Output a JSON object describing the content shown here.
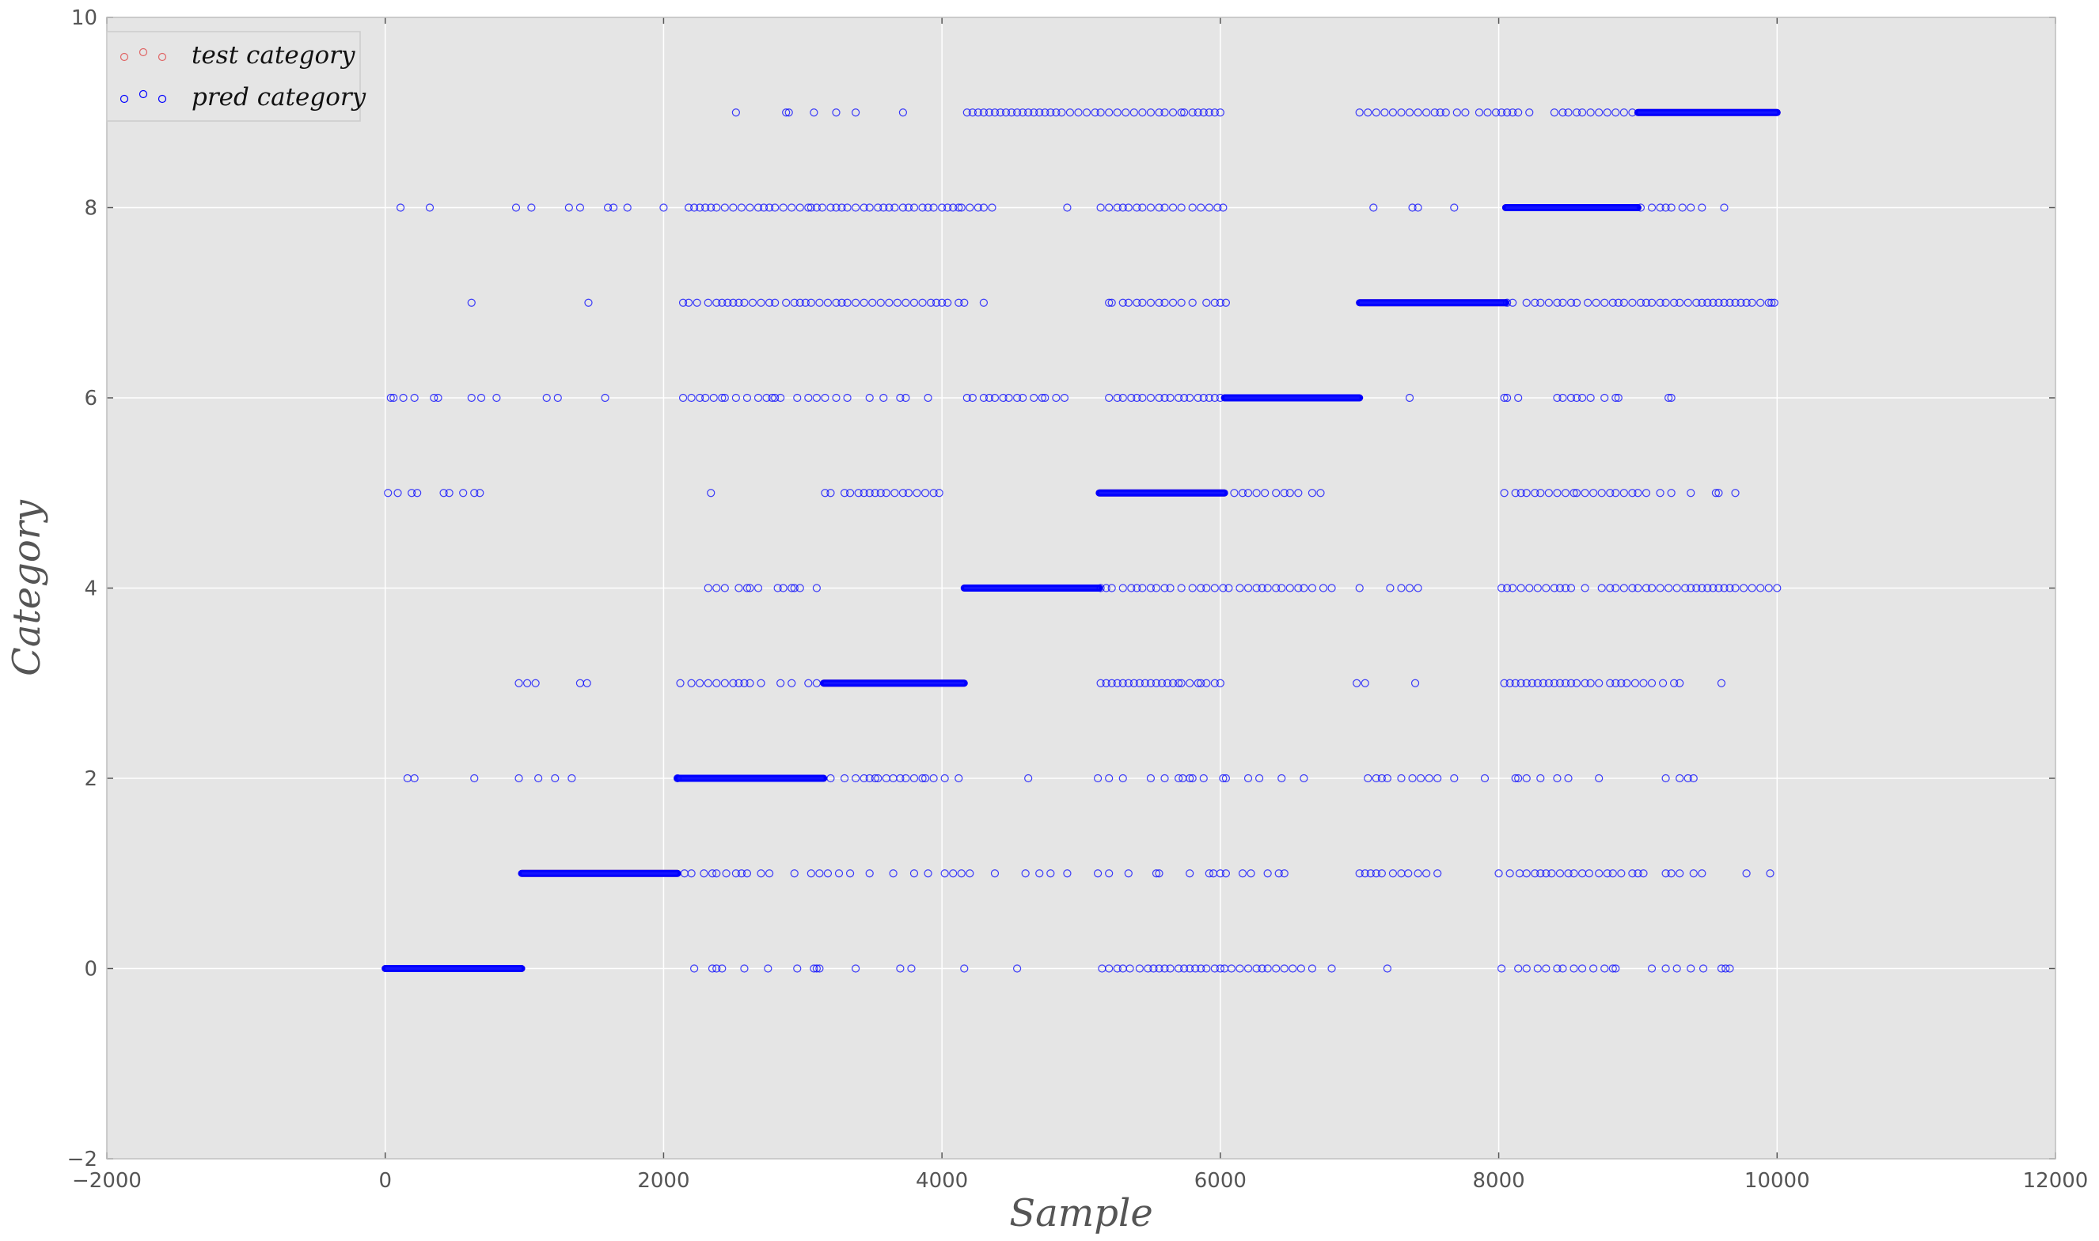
{
  "chart_data": {
    "type": "scatter",
    "title": "",
    "xlabel": "Sample",
    "ylabel": "Category",
    "xlim": [
      -2000,
      12000
    ],
    "ylim": [
      -2,
      10
    ],
    "xticks": [
      -2000,
      0,
      2000,
      4000,
      6000,
      8000,
      10000,
      12000
    ],
    "yticks": [
      -2,
      0,
      2,
      4,
      6,
      8,
      10
    ],
    "xtick_labels": [
      "−2000",
      "0",
      "2000",
      "4000",
      "6000",
      "8000",
      "10000",
      "12000"
    ],
    "ytick_labels": [
      "−2",
      "0",
      "2",
      "4",
      "6",
      "8",
      "10"
    ],
    "grid": true,
    "legend_position": "upper-left",
    "background_color": "#e5e5e5",
    "series": [
      {
        "name": "test category",
        "color": "#e06666",
        "marker": "open-circle",
        "segments": [
          {
            "y": 0,
            "x_start": 0,
            "x_end": 980
          },
          {
            "y": 1,
            "x_start": 980,
            "x_end": 2100
          },
          {
            "y": 2,
            "x_start": 2100,
            "x_end": 3150
          },
          {
            "y": 3,
            "x_start": 3150,
            "x_end": 4160
          },
          {
            "y": 4,
            "x_start": 4160,
            "x_end": 5130
          },
          {
            "y": 5,
            "x_start": 5130,
            "x_end": 6030
          },
          {
            "y": 6,
            "x_start": 6030,
            "x_end": 7000
          },
          {
            "y": 7,
            "x_start": 7000,
            "x_end": 8050
          },
          {
            "y": 8,
            "x_start": 8050,
            "x_end": 9000
          },
          {
            "y": 9,
            "x_start": 9000,
            "x_end": 10000
          }
        ]
      },
      {
        "name": "pred category",
        "color": "#0000ff",
        "marker": "open-circle",
        "segments": [
          {
            "y": 0,
            "x_start": 0,
            "x_end": 980
          },
          {
            "y": 1,
            "x_start": 980,
            "x_end": 2100
          },
          {
            "y": 2,
            "x_start": 2100,
            "x_end": 3150
          },
          {
            "y": 3,
            "x_start": 3150,
            "x_end": 4160
          },
          {
            "y": 4,
            "x_start": 4160,
            "x_end": 5130
          },
          {
            "y": 5,
            "x_start": 5130,
            "x_end": 6030
          },
          {
            "y": 6,
            "x_start": 6030,
            "x_end": 7000
          },
          {
            "y": 7,
            "x_start": 7000,
            "x_end": 8050
          },
          {
            "y": 8,
            "x_start": 8050,
            "x_end": 9000
          },
          {
            "y": 9,
            "x_start": 9000,
            "x_end": 10000
          }
        ],
        "scattered_points": {
          "0": [
            2220,
            2350,
            2380,
            2420,
            2580,
            2750,
            2960,
            3080,
            3100,
            3120,
            3380,
            3700,
            3780,
            4160,
            4540,
            5150,
            5200,
            5260,
            5300,
            5350,
            5420,
            5480,
            5520,
            5560,
            5600,
            5640,
            5700,
            5740,
            5780,
            5820,
            5860,
            5900,
            5960,
            6000,
            6030,
            6080,
            6140,
            6200,
            6260,
            6300,
            6340,
            6400,
            6460,
            6520,
            6580,
            6660,
            6800,
            7200,
            8020,
            8140,
            8200,
            8280,
            8340,
            8420,
            8460,
            8540,
            8600,
            8680,
            8760,
            8820,
            8840,
            9100,
            9200,
            9280,
            9380,
            9470,
            9600,
            9630,
            9660
          ],
          "1": [
            2150,
            2200,
            2290,
            2350,
            2380,
            2450,
            2520,
            2560,
            2600,
            2700,
            2760,
            2940,
            3060,
            3120,
            3180,
            3260,
            3340,
            3480,
            3650,
            3800,
            3900,
            4020,
            4080,
            4140,
            4200,
            4380,
            4600,
            4700,
            4780,
            4900,
            5120,
            5200,
            5340,
            5540,
            5560,
            5780,
            5920,
            5950,
            6000,
            6040,
            6160,
            6220,
            6340,
            6420,
            6460,
            7000,
            7040,
            7080,
            7120,
            7160,
            7240,
            7300,
            7350,
            7420,
            7480,
            7560,
            8000,
            8080,
            8150,
            8200,
            8260,
            8300,
            8340,
            8380,
            8440,
            8500,
            8540,
            8600,
            8650,
            8720,
            8780,
            8820,
            8880,
            8960,
            9000,
            9040,
            9200,
            9240,
            9300,
            9400,
            9460,
            9780,
            9950
          ],
          "2": [
            160,
            210,
            640,
            960,
            1100,
            1220,
            1340,
            2100,
            3200,
            3300,
            3380,
            3440,
            3480,
            3520,
            3540,
            3600,
            3650,
            3700,
            3740,
            3800,
            3860,
            3880,
            3940,
            4020,
            4120,
            4620,
            5120,
            5200,
            5300,
            5500,
            5600,
            5700,
            5730,
            5780,
            5800,
            5880,
            6020,
            6040,
            6200,
            6280,
            6440,
            6600,
            7060,
            7120,
            7160,
            7200,
            7300,
            7380,
            7440,
            7500,
            7560,
            7680,
            7900,
            8120,
            8140,
            8200,
            8300,
            8420,
            8500,
            8720,
            9200,
            9300,
            9360,
            9400
          ],
          "3": [
            960,
            1020,
            1080,
            1400,
            1450,
            2120,
            2200,
            2260,
            2320,
            2380,
            2440,
            2500,
            2540,
            2580,
            2620,
            2700,
            2840,
            2920,
            3040,
            3100,
            5140,
            5180,
            5220,
            5260,
            5300,
            5340,
            5380,
            5420,
            5460,
            5500,
            5540,
            5580,
            5620,
            5660,
            5700,
            5720,
            5780,
            5840,
            5860,
            5900,
            5960,
            6000,
            6980,
            7040,
            7400,
            8040,
            8080,
            8120,
            8160,
            8200,
            8240,
            8280,
            8320,
            8360,
            8400,
            8440,
            8480,
            8520,
            8560,
            8620,
            8660,
            8720,
            8800,
            8840,
            8880,
            8920,
            8980,
            9040,
            9100,
            9180,
            9260,
            9300,
            9600
          ],
          "4": [
            2320,
            2380,
            2440,
            2540,
            2600,
            2620,
            2680,
            2820,
            2860,
            2920,
            2940,
            2980,
            3100,
            5140,
            5180,
            5220,
            5300,
            5360,
            5400,
            5440,
            5500,
            5540,
            5600,
            5640,
            5720,
            5800,
            5860,
            5900,
            5960,
            6020,
            6060,
            6140,
            6200,
            6260,
            6300,
            6340,
            6400,
            6440,
            6500,
            6560,
            6600,
            6660,
            6740,
            6800,
            7000,
            7220,
            7300,
            7360,
            7420,
            8020,
            8060,
            8100,
            8160,
            8220,
            8280,
            8340,
            8400,
            8440,
            8480,
            8520,
            8620,
            8740,
            8800,
            8840,
            8900,
            8960,
            9000,
            9060,
            9100,
            9160,
            9220,
            9280,
            9340,
            9380,
            9420,
            9460,
            9500,
            9540,
            9580,
            9620,
            9660,
            9700,
            9760,
            9820,
            9880,
            9940,
            10000
          ],
          "5": [
            20,
            90,
            190,
            230,
            420,
            460,
            560,
            640,
            680,
            2340,
            3160,
            3200,
            3300,
            3340,
            3400,
            3440,
            3480,
            3520,
            3560,
            3600,
            3660,
            3720,
            3760,
            3820,
            3880,
            3940,
            3980,
            6100,
            6160,
            6200,
            6260,
            6320,
            6400,
            6460,
            6500,
            6560,
            6660,
            6720,
            8040,
            8120,
            8160,
            8200,
            8260,
            8300,
            8360,
            8420,
            8480,
            8540,
            8560,
            8620,
            8680,
            8740,
            8800,
            8840,
            8900,
            8960,
            9000,
            9060,
            9160,
            9240,
            9380,
            9560,
            9580,
            9700
          ],
          "6": [
            40,
            60,
            130,
            210,
            350,
            380,
            620,
            690,
            800,
            1160,
            1240,
            1580,
            2140,
            2200,
            2260,
            2300,
            2360,
            2420,
            2440,
            2520,
            2600,
            2680,
            2740,
            2780,
            2800,
            2840,
            2960,
            3040,
            3100,
            3160,
            3240,
            3320,
            3480,
            3580,
            3700,
            3740,
            3900,
            4180,
            4220,
            4300,
            4340,
            4380,
            4440,
            4480,
            4540,
            4580,
            4660,
            4720,
            4740,
            4820,
            4880,
            5200,
            5260,
            5300,
            5360,
            5400,
            5440,
            5500,
            5560,
            5600,
            5640,
            5700,
            5740,
            5780,
            5840,
            5880,
            5920,
            5960,
            6000,
            7360,
            8040,
            8060,
            8140,
            8420,
            8460,
            8520,
            8560,
            8600,
            8660,
            8760,
            8840,
            8860,
            9220,
            9240
          ],
          "7": [
            620,
            1460,
            2140,
            2180,
            2240,
            2320,
            2380,
            2420,
            2460,
            2500,
            2540,
            2580,
            2640,
            2700,
            2760,
            2800,
            2880,
            2940,
            2980,
            3020,
            3060,
            3120,
            3180,
            3240,
            3280,
            3320,
            3380,
            3440,
            3500,
            3560,
            3620,
            3680,
            3740,
            3800,
            3860,
            3920,
            3960,
            4000,
            4040,
            4120,
            4160,
            4300,
            5200,
            5220,
            5300,
            5340,
            5400,
            5440,
            5500,
            5560,
            5600,
            5660,
            5720,
            5800,
            5900,
            5960,
            6000,
            6040,
            8060,
            8100,
            8200,
            8260,
            8300,
            8360,
            8420,
            8460,
            8520,
            8560,
            8640,
            8700,
            8760,
            8820,
            8860,
            8900,
            8960,
            9020,
            9060,
            9100,
            9160,
            9200,
            9260,
            9300,
            9360,
            9420,
            9460,
            9500,
            9540,
            9580,
            9620,
            9660,
            9700,
            9740,
            9780,
            9820,
            9880,
            9940,
            9960,
            9980
          ],
          "8": [
            110,
            320,
            940,
            1050,
            1320,
            1400,
            1600,
            1640,
            1740,
            2000,
            2180,
            2220,
            2260,
            2300,
            2340,
            2380,
            2440,
            2500,
            2560,
            2620,
            2680,
            2720,
            2760,
            2800,
            2860,
            2920,
            2980,
            3040,
            3060,
            3100,
            3140,
            3200,
            3240,
            3280,
            3320,
            3380,
            3440,
            3480,
            3540,
            3580,
            3620,
            3660,
            3720,
            3760,
            3800,
            3860,
            3900,
            3940,
            4000,
            4040,
            4080,
            4120,
            4140,
            4200,
            4260,
            4300,
            4360,
            4900,
            5140,
            5200,
            5260,
            5300,
            5340,
            5400,
            5440,
            5500,
            5560,
            5600,
            5660,
            5720,
            5800,
            5860,
            5920,
            5980,
            6020,
            7100,
            7380,
            7420,
            7680,
            9020,
            9100,
            9160,
            9200,
            9240,
            9320,
            9380,
            9460,
            9620
          ],
          "9": [
            2520,
            2880,
            2900,
            3080,
            3240,
            3380,
            3720,
            4180,
            4220,
            4260,
            4300,
            4340,
            4380,
            4420,
            4460,
            4500,
            4540,
            4580,
            4620,
            4660,
            4700,
            4740,
            4780,
            4820,
            4860,
            4920,
            4980,
            5040,
            5100,
            5140,
            5200,
            5260,
            5320,
            5380,
            5440,
            5500,
            5560,
            5600,
            5660,
            5720,
            5740,
            5800,
            5840,
            5880,
            5920,
            5960,
            6000,
            7000,
            7060,
            7120,
            7180,
            7240,
            7300,
            7360,
            7420,
            7480,
            7540,
            7580,
            7620,
            7700,
            7760,
            7860,
            7920,
            7980,
            8020,
            8060,
            8100,
            8140,
            8220,
            8400,
            8460,
            8500,
            8560,
            8600,
            8660,
            8720,
            8780,
            8840,
            8900,
            8960
          ]
        }
      }
    ]
  }
}
